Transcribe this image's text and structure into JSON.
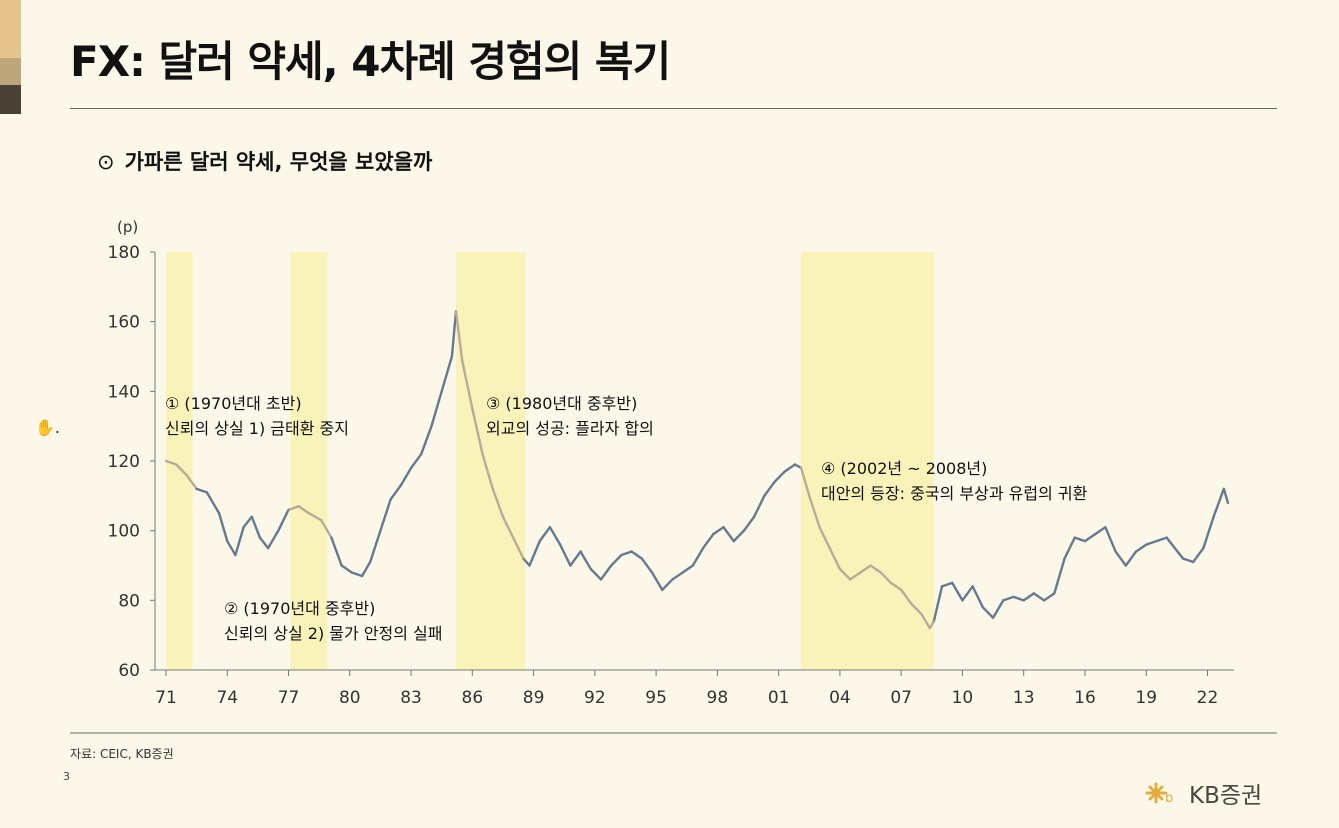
{
  "header": {
    "title": "FX: 달러 약세, 4차례 경험의 복기",
    "subtitle_bullet": "⊙",
    "subtitle": "가파른 달러 약세, 무엇을 보았을까"
  },
  "footer": {
    "source": "자료: CEIC, KB증권",
    "page": "3",
    "brand": "KB증권",
    "logo_icon": "kb-star-logo"
  },
  "colors": {
    "background": "#fbf8ea",
    "main_line": "#667a8e",
    "highlight_line": "#b7ab9a",
    "shade": "#faf3b9",
    "brand_accent": "#e6c48e"
  },
  "chart_data": {
    "type": "line",
    "unit_label": "(p)",
    "ylim": [
      60,
      180
    ],
    "yticks": [
      60,
      80,
      100,
      120,
      140,
      160,
      180
    ],
    "xlim": [
      1971,
      2023.2
    ],
    "xtick_labels": [
      "71",
      "74",
      "77",
      "80",
      "83",
      "86",
      "89",
      "92",
      "95",
      "98",
      "01",
      "04",
      "07",
      "10",
      "13",
      "16",
      "19",
      "22"
    ],
    "shaded_periods": [
      [
        1971,
        1972.3
      ],
      [
        1977.1,
        1978.9
      ],
      [
        1985.2,
        1988.6
      ],
      [
        2002.1,
        2008.6
      ]
    ],
    "series": [
      {
        "points": [
          [
            1971,
            120
          ],
          [
            1971.5,
            119
          ],
          [
            1972,
            116
          ],
          [
            1972.5,
            112
          ],
          [
            1973,
            111
          ],
          [
            1973.3,
            108
          ],
          [
            1973.6,
            105
          ],
          [
            1974,
            97
          ],
          [
            1974.4,
            93
          ],
          [
            1974.8,
            101
          ],
          [
            1975.2,
            104
          ],
          [
            1975.6,
            98
          ],
          [
            1976,
            95
          ],
          [
            1976.5,
            100
          ],
          [
            1977,
            106
          ],
          [
            1977.5,
            107
          ],
          [
            1978,
            105
          ],
          [
            1978.6,
            103
          ],
          [
            1979.1,
            98
          ],
          [
            1979.6,
            90
          ],
          [
            1980.1,
            88
          ],
          [
            1980.6,
            87
          ],
          [
            1981,
            91
          ],
          [
            1981.5,
            100
          ],
          [
            1982,
            109
          ],
          [
            1982.5,
            113
          ],
          [
            1983,
            118
          ],
          [
            1983.5,
            122
          ],
          [
            1984,
            130
          ],
          [
            1984.5,
            140
          ],
          [
            1985,
            150
          ],
          [
            1985.2,
            163
          ],
          [
            1985.5,
            149
          ],
          [
            1986,
            135
          ],
          [
            1986.5,
            122
          ],
          [
            1987,
            112
          ],
          [
            1987.5,
            104
          ],
          [
            1988,
            98
          ],
          [
            1988.5,
            92
          ],
          [
            1988.8,
            90
          ],
          [
            1989.3,
            97
          ],
          [
            1989.8,
            101
          ],
          [
            1990.3,
            96
          ],
          [
            1990.8,
            90
          ],
          [
            1991.3,
            94
          ],
          [
            1991.8,
            89
          ],
          [
            1992.3,
            86
          ],
          [
            1992.8,
            90
          ],
          [
            1993.3,
            93
          ],
          [
            1993.8,
            94
          ],
          [
            1994.3,
            92
          ],
          [
            1994.8,
            88
          ],
          [
            1995.3,
            83
          ],
          [
            1995.8,
            86
          ],
          [
            1996.3,
            88
          ],
          [
            1996.8,
            90
          ],
          [
            1997.3,
            95
          ],
          [
            1997.8,
            99
          ],
          [
            1998.3,
            101
          ],
          [
            1998.8,
            97
          ],
          [
            1999.3,
            100
          ],
          [
            1999.8,
            104
          ],
          [
            2000.3,
            110
          ],
          [
            2000.8,
            114
          ],
          [
            2001.3,
            117
          ],
          [
            2001.8,
            119
          ],
          [
            2002.1,
            118
          ],
          [
            2002.5,
            110
          ],
          [
            2003,
            101
          ],
          [
            2003.5,
            95
          ],
          [
            2004,
            89
          ],
          [
            2004.5,
            86
          ],
          [
            2005,
            88
          ],
          [
            2005.5,
            90
          ],
          [
            2006,
            88
          ],
          [
            2006.5,
            85
          ],
          [
            2007,
            83
          ],
          [
            2007.5,
            79
          ],
          [
            2008,
            76
          ],
          [
            2008.4,
            72
          ],
          [
            2008.6,
            74
          ],
          [
            2009,
            84
          ],
          [
            2009.5,
            85
          ],
          [
            2010,
            80
          ],
          [
            2010.5,
            84
          ],
          [
            2011,
            78
          ],
          [
            2011.5,
            75
          ],
          [
            2012,
            80
          ],
          [
            2012.5,
            81
          ],
          [
            2013,
            80
          ],
          [
            2013.5,
            82
          ],
          [
            2014,
            80
          ],
          [
            2014.5,
            82
          ],
          [
            2015,
            92
          ],
          [
            2015.5,
            98
          ],
          [
            2016,
            97
          ],
          [
            2016.5,
            99
          ],
          [
            2017,
            101
          ],
          [
            2017.5,
            94
          ],
          [
            2018,
            90
          ],
          [
            2018.5,
            94
          ],
          [
            2019,
            96
          ],
          [
            2019.5,
            97
          ],
          [
            2020,
            98
          ],
          [
            2020.4,
            95
          ],
          [
            2020.8,
            92
          ],
          [
            2021.3,
            91
          ],
          [
            2021.8,
            95
          ],
          [
            2022.3,
            104
          ],
          [
            2022.8,
            112
          ],
          [
            2023,
            108
          ]
        ]
      }
    ],
    "annotations": [
      {
        "label": "① (1970년대 초반)",
        "sub": "신뢰의 상실 1) 금태환 중지"
      },
      {
        "label": "② (1970년대 중후반)",
        "sub": "신뢰의 상실 2) 물가 안정의 실패"
      },
      {
        "label": "③ (1980년대 중후반)",
        "sub": "외교의 성공: 플라자 합의"
      },
      {
        "label": "④ (2002년 ~ 2008년)",
        "sub": "대안의 등장: 중국의 부상과 유럽의 귀환"
      }
    ]
  }
}
